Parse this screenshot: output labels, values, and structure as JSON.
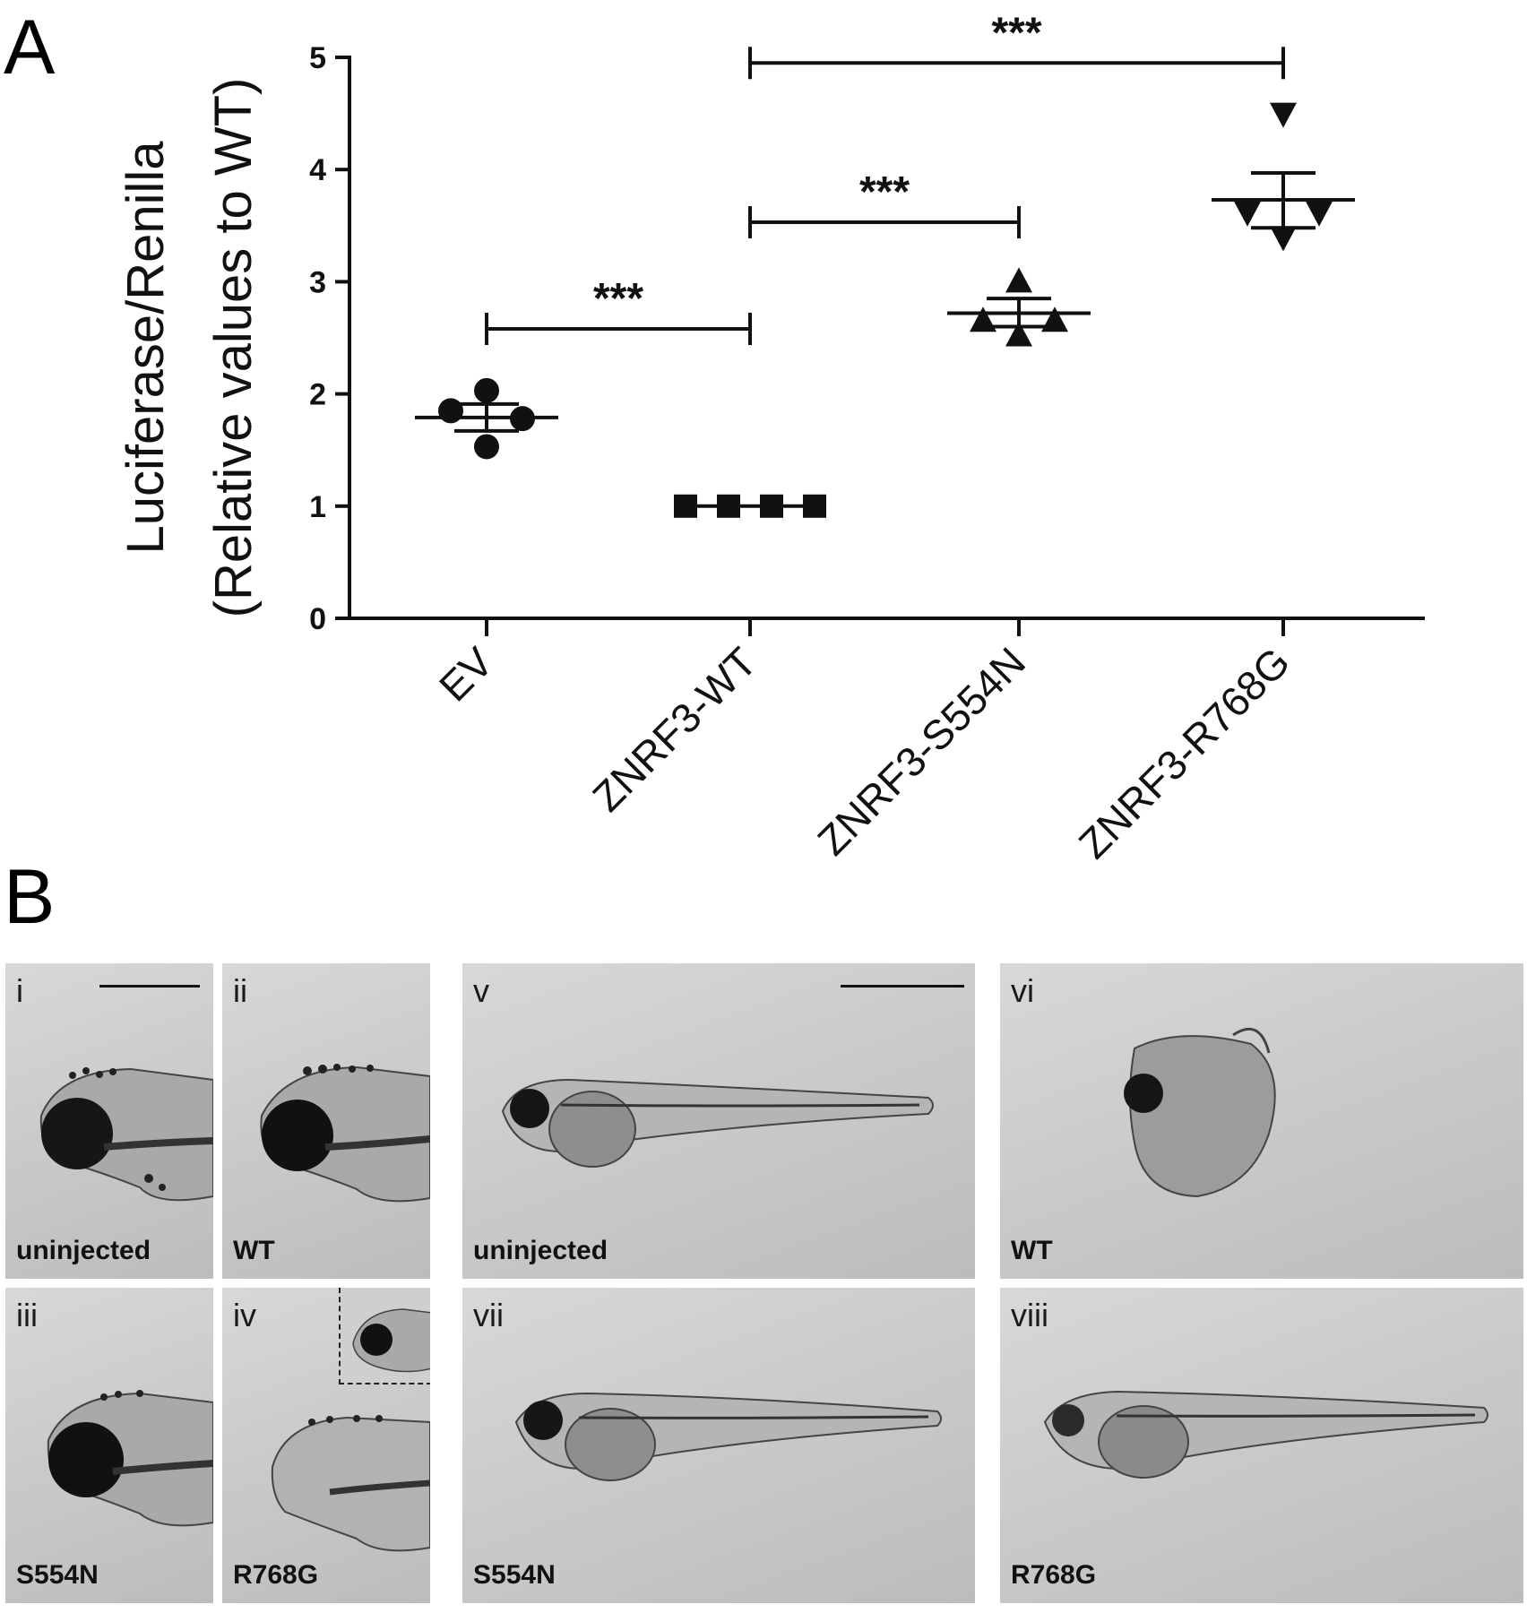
{
  "panel_a": {
    "letter": "A"
  },
  "panel_b": {
    "letter": "B",
    "images": [
      {
        "id": "i",
        "label": "uninjected"
      },
      {
        "id": "ii",
        "label": "WT"
      },
      {
        "id": "iii",
        "label": "S554N"
      },
      {
        "id": "iv",
        "label": "R768G"
      },
      {
        "id": "v",
        "label": "uninjected"
      },
      {
        "id": "vi",
        "label": "WT"
      },
      {
        "id": "vii",
        "label": "S554N"
      },
      {
        "id": "viii",
        "label": "R768G"
      }
    ]
  },
  "chart_data": {
    "type": "scatter",
    "ylabel_line1": "Luciferase/Renilla",
    "ylabel_line2": "(Relative values to WT)",
    "xlabel": "",
    "ylim": [
      0,
      5
    ],
    "yticks": [
      0,
      1,
      2,
      3,
      4,
      5
    ],
    "categories": [
      "EV",
      "ZNRF3-WT",
      "ZNRF3-S554N",
      "ZNRF3-R768G"
    ],
    "markers": [
      "circle",
      "square",
      "triangle-up",
      "triangle-down"
    ],
    "series": [
      {
        "category": "EV",
        "points": [
          1.85,
          2.03,
          1.78,
          1.53
        ],
        "mean": 1.79,
        "sem_low": 1.67,
        "sem_high": 1.91
      },
      {
        "category": "ZNRF3-WT",
        "points": [
          1.0,
          1.0,
          1.0,
          1.0
        ],
        "mean": 1.0,
        "sem_low": 1.0,
        "sem_high": 1.0
      },
      {
        "category": "ZNRF3-S554N",
        "points": [
          2.65,
          3.0,
          2.65,
          2.52
        ],
        "mean": 2.72,
        "sem_low": 2.6,
        "sem_high": 2.85
      },
      {
        "category": "ZNRF3-R768G",
        "points": [
          3.62,
          4.5,
          3.62,
          3.4
        ],
        "mean": 3.73,
        "sem_low": 3.48,
        "sem_high": 3.97
      }
    ],
    "significance": [
      {
        "from": "EV",
        "to": "ZNRF3-WT",
        "y": 2.58,
        "label": "***"
      },
      {
        "from": "ZNRF3-WT",
        "to": "ZNRF3-S554N",
        "y": 3.53,
        "label": "***"
      },
      {
        "from": "ZNRF3-WT",
        "to": "ZNRF3-R768G",
        "y": 4.95,
        "label": "***"
      }
    ],
    "grid": false,
    "legend": "none"
  }
}
